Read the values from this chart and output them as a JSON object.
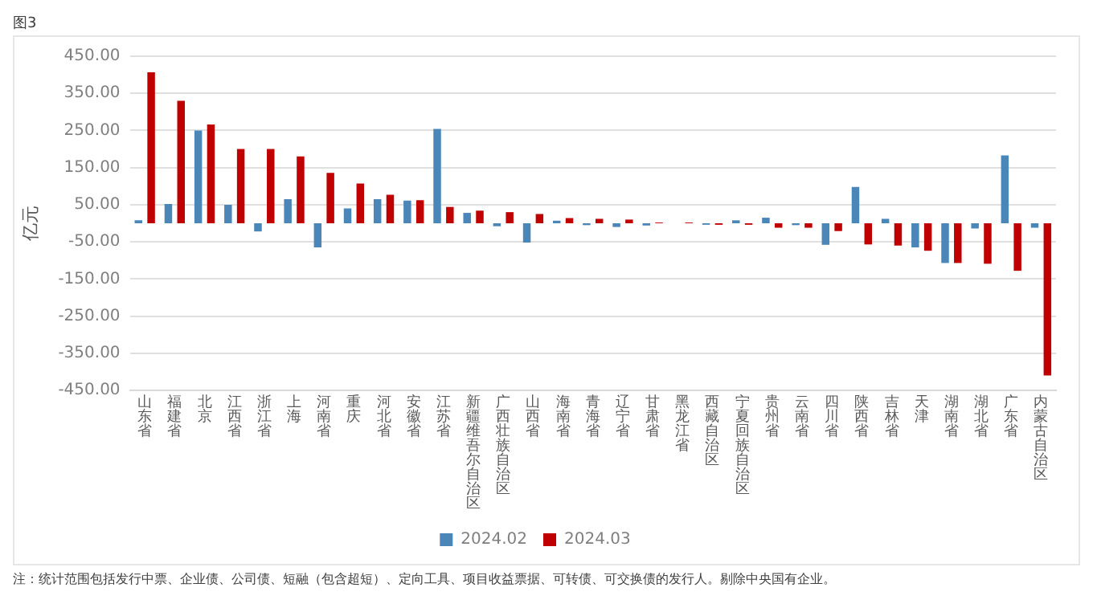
{
  "chart_data": {
    "type": "bar",
    "title": "图3",
    "ylabel": "亿元",
    "categories": [
      "山东省",
      "福建省",
      "北京",
      "江西省",
      "浙江省",
      "上海",
      "河南省",
      "重庆",
      "河北省",
      "安徽省",
      "江苏省",
      "新疆维吾尔自治区",
      "广西壮族自治区",
      "山西省",
      "海南省",
      "青海省",
      "辽宁省",
      "甘肃省",
      "黑龙江省",
      "西藏自治区",
      "宁夏回族自治区",
      "贵州省",
      "云南省",
      "四川省",
      "陕西省",
      "吉林省",
      "天津",
      "湖南省",
      "湖北省",
      "广东省",
      "内蒙古自治区"
    ],
    "series": [
      {
        "name": "2024.02",
        "color": "#4a86b8",
        "values": [
          8,
          52,
          250,
          50,
          -22,
          65,
          -65,
          40,
          65,
          61,
          254,
          28,
          -8,
          -52,
          7,
          -5,
          -10,
          -6,
          0,
          -4,
          8,
          15,
          -5,
          -58,
          98,
          12,
          -65,
          -107,
          -14,
          183,
          -12
        ]
      },
      {
        "name": "2024.03",
        "color": "#c00000",
        "values": [
          407,
          330,
          266,
          200,
          200,
          180,
          136,
          107,
          77,
          62,
          44,
          34,
          30,
          25,
          14,
          12,
          10,
          2,
          2,
          -4,
          -4,
          -12,
          -12,
          -21,
          -57,
          -60,
          -74,
          -107,
          -109,
          -128,
          -410
        ]
      }
    ],
    "ylim": [
      -450,
      450
    ],
    "yticks": [
      {
        "value": -450,
        "label": "-450.00"
      },
      {
        "value": -350,
        "label": "-350.00"
      },
      {
        "value": -250,
        "label": "-250.00"
      },
      {
        "value": -150,
        "label": "-150.00"
      },
      {
        "value": -50,
        "label": "-50.00"
      },
      {
        "value": 50,
        "label": "50.00"
      },
      {
        "value": 150,
        "label": "150.00"
      },
      {
        "value": 250,
        "label": "250.00"
      },
      {
        "value": 350,
        "label": "350.00"
      },
      {
        "value": 450,
        "label": "450.00"
      }
    ],
    "grid": "y",
    "legend": "bottom",
    "annotations": [
      "注：统计范围包括发行中票、企业债、公司债、短融（包含超短）、定向工具、项目收益票据、可转债、可交换债的发行人。剔除中央国有企业。"
    ]
  }
}
